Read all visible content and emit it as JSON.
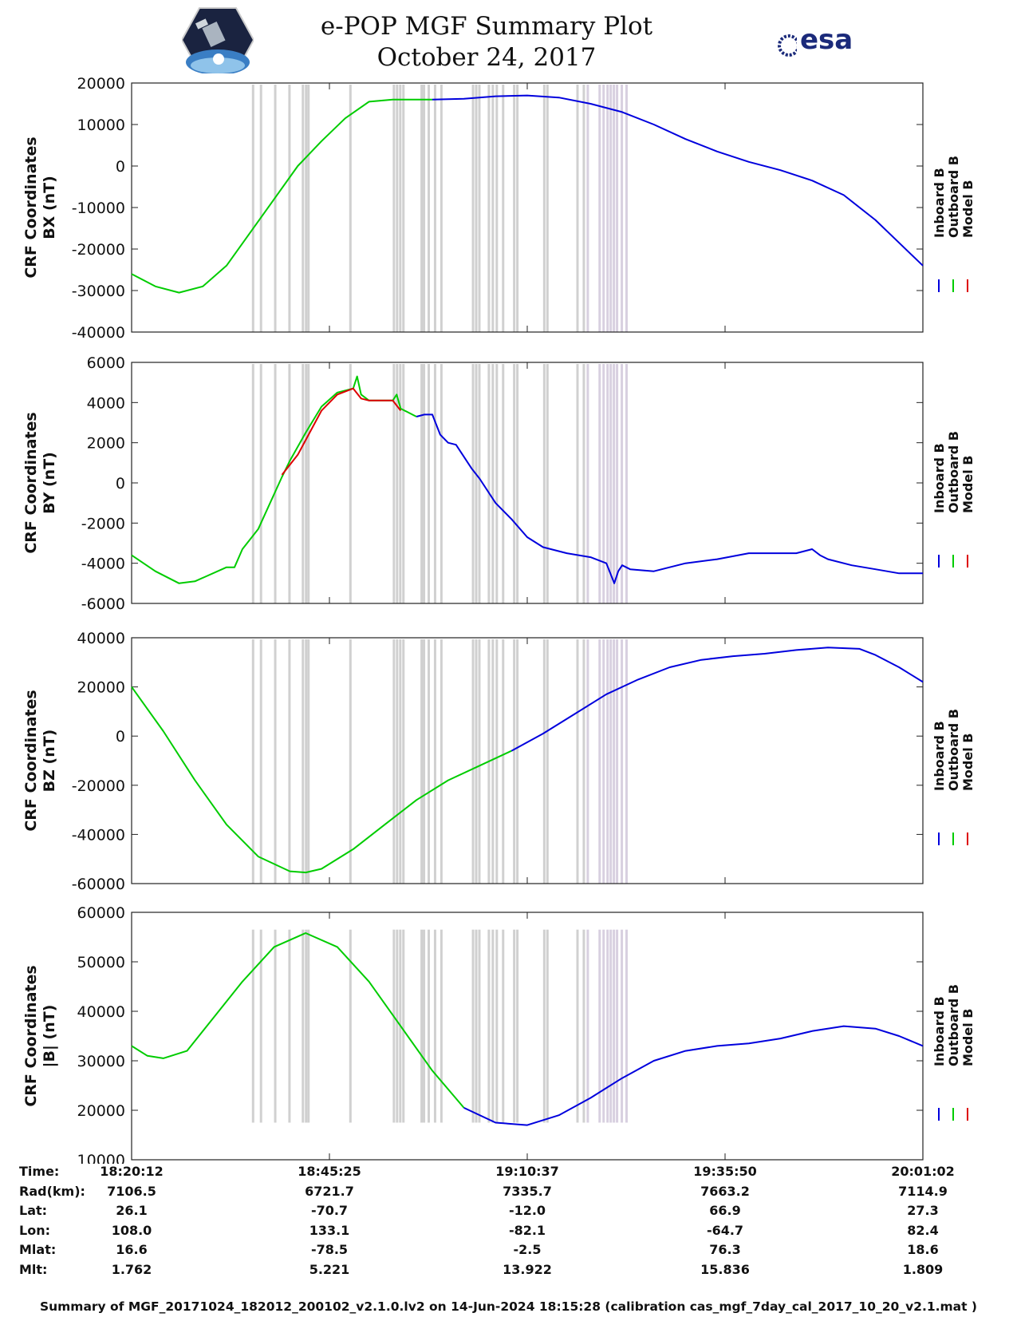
{
  "header": {
    "title_line1": "e-POP MGF Summary Plot",
    "title_line2": "October 24, 2017",
    "logo_left": "cassiope-mission-logo",
    "logo_right_text": "esa"
  },
  "colors": {
    "inboard": "#0000dd",
    "outboard": "#00cc00",
    "model": "#dd0000",
    "gap_bars": "#d0d0d0",
    "gap_bars_alt": "#d8d0e0"
  },
  "chart_data": [
    {
      "type": "line",
      "ylabel_line1": "CRF Coordinates",
      "ylabel_line2": "BX (nT)",
      "ylim": [
        -40000,
        20000
      ],
      "yticks": [
        -40000,
        -30000,
        -20000,
        -10000,
        0,
        10000,
        20000
      ],
      "ytick_labels": [
        "-40000",
        "-30000",
        "-20000",
        "-10000",
        "0",
        "10000",
        "20000"
      ],
      "legend": [
        "Inboard B",
        "Outboard B",
        "Model B"
      ],
      "series": [
        {
          "name": "Outboard B",
          "x": [
            0.0,
            0.03,
            0.06,
            0.09,
            0.12,
            0.15,
            0.18,
            0.21,
            0.24,
            0.27,
            0.3,
            0.33,
            0.36,
            0.38
          ],
          "values": [
            -26000,
            -29000,
            -30500,
            -29000,
            -24000,
            -16000,
            -8000,
            0,
            6000,
            11500,
            15500,
            16000,
            16000,
            16000
          ]
        },
        {
          "name": "Inboard B",
          "x": [
            0.38,
            0.42,
            0.46,
            0.5,
            0.54,
            0.58,
            0.62,
            0.66,
            0.7,
            0.74,
            0.78,
            0.82,
            0.86,
            0.9,
            0.94,
            0.97,
            1.0
          ],
          "values": [
            16000,
            16200,
            16800,
            17000,
            16500,
            15000,
            13000,
            10000,
            6500,
            3500,
            1000,
            -1000,
            -3500,
            -7000,
            -13000,
            -18500,
            -24000
          ]
        }
      ]
    },
    {
      "type": "line",
      "ylabel_line1": "CRF Coordinates",
      "ylabel_line2": "BY (nT)",
      "ylim": [
        -6000,
        6000
      ],
      "yticks": [
        -6000,
        -4000,
        -2000,
        0,
        2000,
        4000,
        6000
      ],
      "ytick_labels": [
        "-6000",
        "-4000",
        "-2000",
        "0",
        "2000",
        "4000",
        "6000"
      ],
      "legend": [
        "Inboard B",
        "Outboard B",
        "Model B"
      ],
      "series": [
        {
          "name": "Outboard B",
          "x": [
            0.0,
            0.03,
            0.06,
            0.08,
            0.12,
            0.13,
            0.14,
            0.16,
            0.19,
            0.2,
            0.22,
            0.24,
            0.26,
            0.28,
            0.285,
            0.29,
            0.3,
            0.33,
            0.335,
            0.34,
            0.36
          ],
          "values": [
            -3600,
            -4400,
            -5000,
            -4900,
            -4200,
            -4200,
            -3300,
            -2300,
            300,
            1100,
            2500,
            3800,
            4500,
            4700,
            5300,
            4400,
            4100,
            4100,
            4400,
            3700,
            3300
          ]
        },
        {
          "name": "Model B",
          "x": [
            0.19,
            0.21,
            0.24,
            0.26,
            0.28,
            0.29,
            0.3,
            0.33,
            0.34
          ],
          "values": [
            400,
            1400,
            3600,
            4400,
            4700,
            4200,
            4100,
            4100,
            3600
          ]
        },
        {
          "name": "Inboard B",
          "x": [
            0.36,
            0.37,
            0.38,
            0.39,
            0.4,
            0.41,
            0.43,
            0.44,
            0.46,
            0.48,
            0.5,
            0.52,
            0.55,
            0.58,
            0.6,
            0.61,
            0.615,
            0.62,
            0.63,
            0.66,
            0.7,
            0.74,
            0.78,
            0.8,
            0.84,
            0.86,
            0.87,
            0.88,
            0.91,
            0.94,
            0.97,
            1.0
          ],
          "values": [
            3300,
            3400,
            3400,
            2400,
            2000,
            1900,
            700,
            200,
            -1000,
            -1800,
            -2700,
            -3200,
            -3500,
            -3700,
            -4000,
            -5000,
            -4400,
            -4100,
            -4300,
            -4400,
            -4000,
            -3800,
            -3500,
            -3500,
            -3500,
            -3300,
            -3600,
            -3800,
            -4100,
            -4300,
            -4500,
            -4500
          ]
        }
      ]
    },
    {
      "type": "line",
      "ylabel_line1": "CRF Coordinates",
      "ylabel_line2": "BZ (nT)",
      "ylim": [
        -60000,
        40000
      ],
      "yticks": [
        -60000,
        -40000,
        -20000,
        0,
        20000,
        40000
      ],
      "ytick_labels": [
        "-60000",
        "-40000",
        "-20000",
        "0",
        "20000",
        "40000"
      ],
      "legend": [
        "Inboard B",
        "Outboard B",
        "Model B"
      ],
      "series": [
        {
          "name": "Outboard B",
          "x": [
            0.0,
            0.04,
            0.08,
            0.12,
            0.16,
            0.2,
            0.22,
            0.24,
            0.28,
            0.32,
            0.36,
            0.4,
            0.44,
            0.48
          ],
          "values": [
            20000,
            2000,
            -18000,
            -36000,
            -49000,
            -55000,
            -55500,
            -54000,
            -46000,
            -36000,
            -26000,
            -18000,
            -12000,
            -6000
          ]
        },
        {
          "name": "Inboard B",
          "x": [
            0.48,
            0.52,
            0.56,
            0.6,
            0.64,
            0.68,
            0.72,
            0.76,
            0.8,
            0.84,
            0.88,
            0.92,
            0.94,
            0.97,
            1.0
          ],
          "values": [
            -6000,
            1000,
            9000,
            17000,
            23000,
            28000,
            31000,
            32500,
            33500,
            35000,
            36000,
            35500,
            33000,
            28000,
            22000
          ]
        }
      ]
    },
    {
      "type": "line",
      "ylabel_line1": "CRF Coordinates",
      "ylabel_line2": "|B| (nT)",
      "ylim": [
        10000,
        60000
      ],
      "yticks": [
        10000,
        20000,
        30000,
        40000,
        50000,
        60000
      ],
      "ytick_labels": [
        "10000",
        "20000",
        "30000",
        "40000",
        "50000",
        "60000"
      ],
      "legend": [
        "Inboard B",
        "Outboard B",
        "Model B"
      ],
      "series": [
        {
          "name": "Outboard B",
          "x": [
            0.0,
            0.02,
            0.04,
            0.07,
            0.1,
            0.14,
            0.18,
            0.22,
            0.26,
            0.3,
            0.34,
            0.38,
            0.42
          ],
          "values": [
            33000,
            31000,
            30500,
            32000,
            38000,
            46000,
            53000,
            55800,
            53000,
            46000,
            37000,
            28000,
            20500
          ]
        },
        {
          "name": "Inboard B",
          "x": [
            0.42,
            0.46,
            0.5,
            0.54,
            0.58,
            0.62,
            0.66,
            0.7,
            0.74,
            0.78,
            0.82,
            0.86,
            0.9,
            0.94,
            0.97,
            1.0
          ],
          "values": [
            20500,
            17500,
            17000,
            19000,
            22500,
            26500,
            30000,
            32000,
            33000,
            33500,
            34500,
            36000,
            37000,
            36500,
            35000,
            33000
          ]
        }
      ]
    }
  ],
  "gap_bars_x": [
    0.152,
    0.162,
    0.18,
    0.198,
    0.215,
    0.219,
    0.222,
    0.275,
    0.33,
    0.334,
    0.338,
    0.342,
    0.365,
    0.368,
    0.374,
    0.382,
    0.39,
    0.43,
    0.434,
    0.438,
    0.45,
    0.455,
    0.46,
    0.468,
    0.482,
    0.486,
    0.52,
    0.524,
    0.562,
    0.57,
    0.575,
    0.59,
    0.595,
    0.6,
    0.604,
    0.608,
    0.612,
    0.618,
    0.624
  ],
  "ephemeris": {
    "labels": [
      "Time:",
      "Rad(km):",
      "Lat:",
      "Lon:",
      "Mlat:",
      "Mlt:"
    ],
    "columns": [
      [
        "18:20:12",
        "7106.5",
        "26.1",
        "108.0",
        "16.6",
        "1.762"
      ],
      [
        "18:45:25",
        "6721.7",
        "-70.7",
        "133.1",
        "-78.5",
        "5.221"
      ],
      [
        "19:10:37",
        "7335.7",
        "-12.0",
        "-82.1",
        "-2.5",
        "13.922"
      ],
      [
        "19:35:50",
        "7663.2",
        "66.9",
        "-64.7",
        "76.3",
        "15.836"
      ],
      [
        "20:01:02",
        "7114.9",
        "27.3",
        "82.4",
        "18.6",
        "1.809"
      ]
    ]
  },
  "footer": "Summary of MGF_20171024_182012_200102_v2.1.0.lv2 on 14-Jun-2024 18:15:28 (calibration cas_mgf_7day_cal_2017_10_20_v2.1.mat )"
}
